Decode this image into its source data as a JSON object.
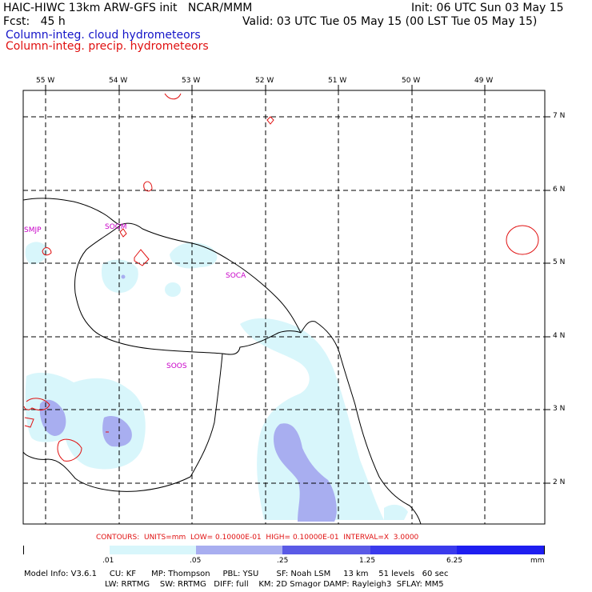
{
  "header": {
    "model_line": "HAIC-HIWC 13km ARW-GFS init   NCAR/MMM",
    "init_line": "Init: 06 UTC Sun 03 May 15",
    "fcst_line": "Fcst:   45 h",
    "valid_line": "Valid: 03 UTC Tue 05 May 15 (00 LST Tue 05 May 15)",
    "field_cloud": "Column-integ. cloud hydrometeors",
    "field_precip": "Column-integ. precip. hydrometeors"
  },
  "colors": {
    "cloud_label": "#1414c8",
    "precip_label": "#e01010",
    "station": "#c800c8",
    "fill_light": "#d8f6fb",
    "fill_medium": "#a8aef0",
    "fill_dark": "#5a5ae6",
    "fill_darkest": "#1e1ef0",
    "contour": "#e01010",
    "coast": "#000000"
  },
  "map": {
    "lon_labels": [
      "55 W",
      "54 W",
      "53 W",
      "52 W",
      "51 W",
      "50 W",
      "49 W"
    ],
    "lat_labels": [
      "7 N",
      "6 N",
      "5 N",
      "4 N",
      "3 N",
      "2 N"
    ],
    "stations": [
      "SMJP",
      "SOGM",
      "SOCA",
      "SOOS"
    ]
  },
  "contour_note": "CONTOURS:  UNITS=mm  LOW= 0.10000E-01  HIGH= 0.10000E-01  INTERVAL=X  3.0000",
  "legend": {
    "ticks": [
      ".01",
      ".05",
      ".25",
      "1.25",
      "6.25"
    ],
    "unit": "mm",
    "colors": [
      "#ffffff",
      "#d8f6fb",
      "#a8aef0",
      "#5a5ae6",
      "#3a3aec",
      "#1e1ef0"
    ]
  },
  "footer": {
    "line1": "Model Info: V3.6.1     CU: KF      MP: Thompson     PBL: YSU       SF: Noah LSM     13 km    51 levels   60 sec",
    "line2": "LW: RRTMG    SW: RRTMG   DIFF: full    KM: 2D Smagor DAMP: Rayleigh3  SFLAY: MM5"
  }
}
